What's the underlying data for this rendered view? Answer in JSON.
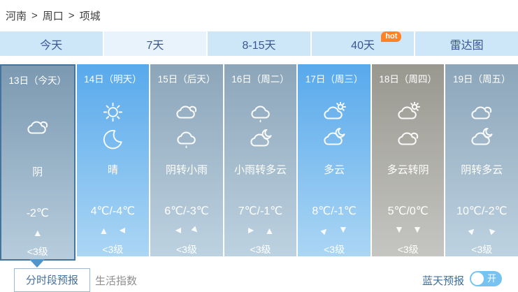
{
  "breadcrumb": {
    "items": [
      "河南",
      "周口",
      "项城"
    ],
    "separator": ">"
  },
  "tabs": [
    {
      "key": "today",
      "label": "今天",
      "active": false
    },
    {
      "key": "7days",
      "label": "7天",
      "active": true
    },
    {
      "key": "8-15days",
      "label": "8-15天",
      "active": false
    },
    {
      "key": "40days",
      "label": "40天",
      "active": false,
      "badge": "hot"
    },
    {
      "key": "radar",
      "label": "雷达图",
      "active": false
    }
  ],
  "forecast": {
    "days": [
      {
        "date": "13日（今天）",
        "icons": [
          "overcast"
        ],
        "weather": "阴",
        "temp": "-2℃",
        "wind_dirs": [
          "up"
        ],
        "wind_level": "<3级",
        "theme": "today",
        "selected": true
      },
      {
        "date": "14日（明天）",
        "icons": [
          "sunny",
          "clear-night"
        ],
        "weather": "晴",
        "temp": "4℃/-4℃",
        "wind_dirs": [
          "up",
          "left"
        ],
        "wind_level": "<3级",
        "theme": "blue",
        "selected": false
      },
      {
        "date": "15日（后天）",
        "icons": [
          "overcast",
          "light-rain"
        ],
        "weather": "阴转小雨",
        "temp": "6℃/-3℃",
        "wind_dirs": [
          "left",
          "down-right"
        ],
        "wind_level": "<3级",
        "theme": "grayblue",
        "selected": false
      },
      {
        "date": "16日（周二）",
        "icons": [
          "light-rain",
          "cloudy-night"
        ],
        "weather": "小雨转多云",
        "temp": "7℃/-1℃",
        "wind_dirs": [
          "right",
          "up"
        ],
        "wind_level": "<3级",
        "theme": "grayblue",
        "selected": false
      },
      {
        "date": "17日（周三）",
        "icons": [
          "cloudy-day",
          "cloudy-night"
        ],
        "weather": "多云",
        "temp": "8℃/-1℃",
        "wind_dirs": [
          "up-right",
          "down"
        ],
        "wind_level": "<3级",
        "theme": "blue",
        "selected": false
      },
      {
        "date": "18日（周四）",
        "icons": [
          "cloudy-day",
          "overcast"
        ],
        "weather": "多云转阴",
        "temp": "5℃/0℃",
        "wind_dirs": [
          "down",
          "down"
        ],
        "wind_level": "<3级",
        "theme": "gray",
        "selected": false
      },
      {
        "date": "19日（周五）",
        "icons": [
          "overcast",
          "cloudy-night"
        ],
        "weather": "阴转多云",
        "temp": "10℃/-2℃",
        "wind_dirs": [
          "up-right",
          "up-left"
        ],
        "wind_level": "<3级",
        "theme": "grayblue",
        "selected": false
      }
    ]
  },
  "footer": {
    "hourly_button": "分时段预报",
    "life_index": "生活指数",
    "blue_sky_label": "蓝天预报",
    "toggle_state": "on",
    "toggle_on_label": "开"
  },
  "colors": {
    "breadcrumb_text": "#3f3f3f",
    "tab_bg": "#cde7f8",
    "tab_active_bg": "#e9f3fc",
    "tab_text": "#3a5795",
    "hot_badge": "#ff8226",
    "today_top": "#7b99b1",
    "today_bottom": "#b7cddd",
    "today_border": "#44749e",
    "blue_top": "#58a9ec",
    "blue_bottom": "#abd6f4",
    "grayblue_top": "#8ca5b9",
    "grayblue_bottom": "#bdd2e1",
    "gray_top": "#99988f",
    "gray_bottom": "#c5c5c2",
    "accent_blue": "#4f94cb",
    "button_border": "#9db9d3",
    "button_text": "#44719c",
    "muted_text": "#8f8f8f",
    "label_blue": "#3e6e9e",
    "toggle_bg": "#76c3f1"
  }
}
